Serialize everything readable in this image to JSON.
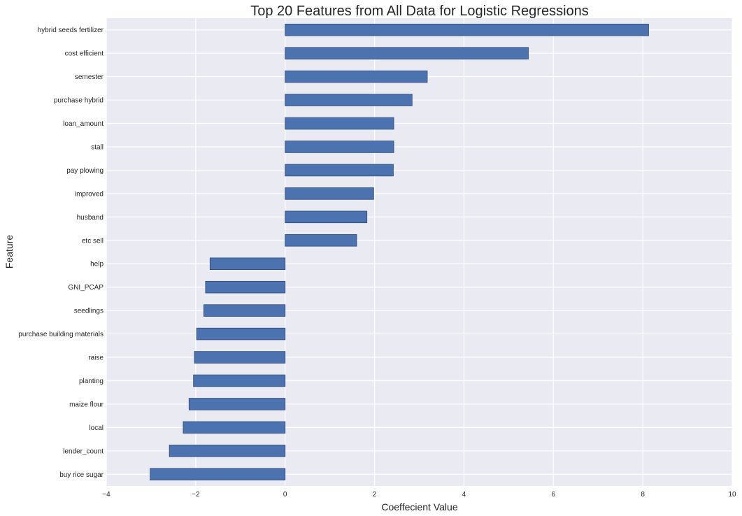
{
  "chart_data": {
    "type": "bar",
    "orientation": "horizontal",
    "title": "Top 20 Features from All Data for Logistic Regressions",
    "xlabel": "Coeffecient Value",
    "ylabel": "Feature",
    "xlim": [
      -4,
      10
    ],
    "xticks": [
      "−4",
      "−2",
      "0",
      "2",
      "4",
      "6",
      "8",
      "10"
    ],
    "xtick_values": [
      -4,
      -2,
      0,
      2,
      4,
      6,
      8,
      10
    ],
    "grid": true,
    "colors": {
      "bar": "#4c72b0",
      "bar_edge": "#2e4a7a",
      "background": "#eaeaf2",
      "grid": "#ffffff"
    },
    "categories": [
      "hybrid seeds fertilizer",
      "cost efficient",
      "semester",
      "purchase hybrid",
      "loan_amount",
      "stall",
      "pay plowing",
      "improved",
      "husband",
      "etc sell",
      "help",
      "GNI_PCAP",
      "seedlings",
      "purchase building materials",
      "raise",
      "planting",
      "maize flour",
      "local",
      "lender_count",
      "buy rice sugar"
    ],
    "values": [
      8.13,
      5.44,
      3.18,
      2.84,
      2.43,
      2.43,
      2.42,
      1.98,
      1.83,
      1.6,
      -1.68,
      -1.78,
      -1.82,
      -1.98,
      -2.03,
      -2.05,
      -2.15,
      -2.28,
      -2.59,
      -3.02
    ]
  }
}
